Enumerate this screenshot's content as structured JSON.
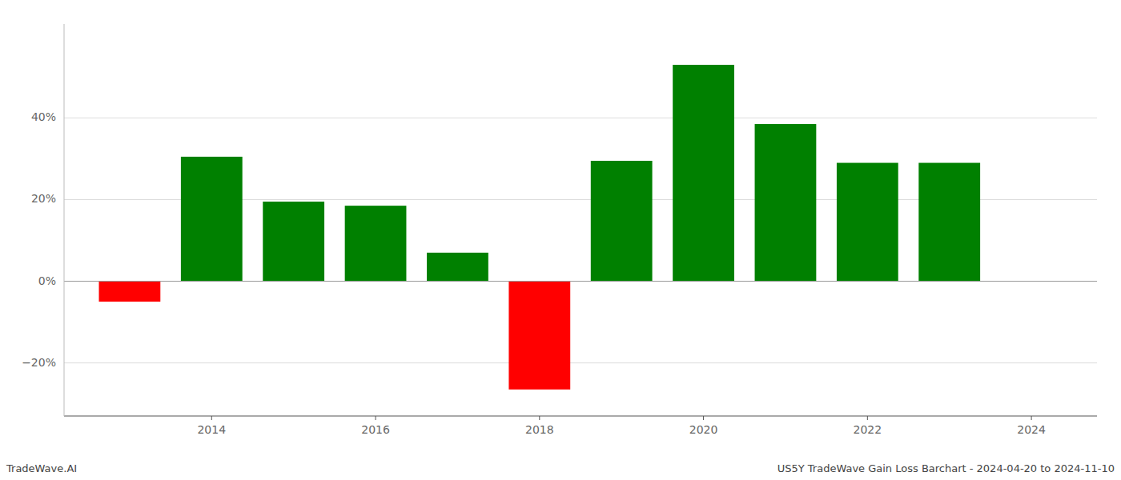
{
  "chart_data": {
    "type": "bar",
    "x": [
      2013,
      2014,
      2015,
      2016,
      2017,
      2018,
      2019,
      2020,
      2021,
      2022,
      2023
    ],
    "values": [
      -5.0,
      30.5,
      19.5,
      18.5,
      7.0,
      -26.5,
      29.5,
      53.0,
      38.5,
      29.0,
      29.0
    ],
    "colors": [
      "#ff0000",
      "#008000",
      "#008000",
      "#008000",
      "#008000",
      "#ff0000",
      "#008000",
      "#008000",
      "#008000",
      "#008000",
      "#008000"
    ],
    "xlim": [
      2012.2,
      2024.8
    ],
    "xticks": [
      2014,
      2016,
      2018,
      2020,
      2022,
      2024
    ],
    "ylim": [
      -33,
      63
    ],
    "yticks": [
      {
        "value": -20,
        "label": "−20%"
      },
      {
        "value": 0,
        "label": "0%"
      },
      {
        "value": 20,
        "label": "20%"
      },
      {
        "value": 40,
        "label": "40%"
      }
    ],
    "grid": true,
    "annotations": [
      "TradeWave.AI",
      "US5Y TradeWave Gain Loss Barchart - 2024-04-20 to 2024-11-10"
    ]
  }
}
